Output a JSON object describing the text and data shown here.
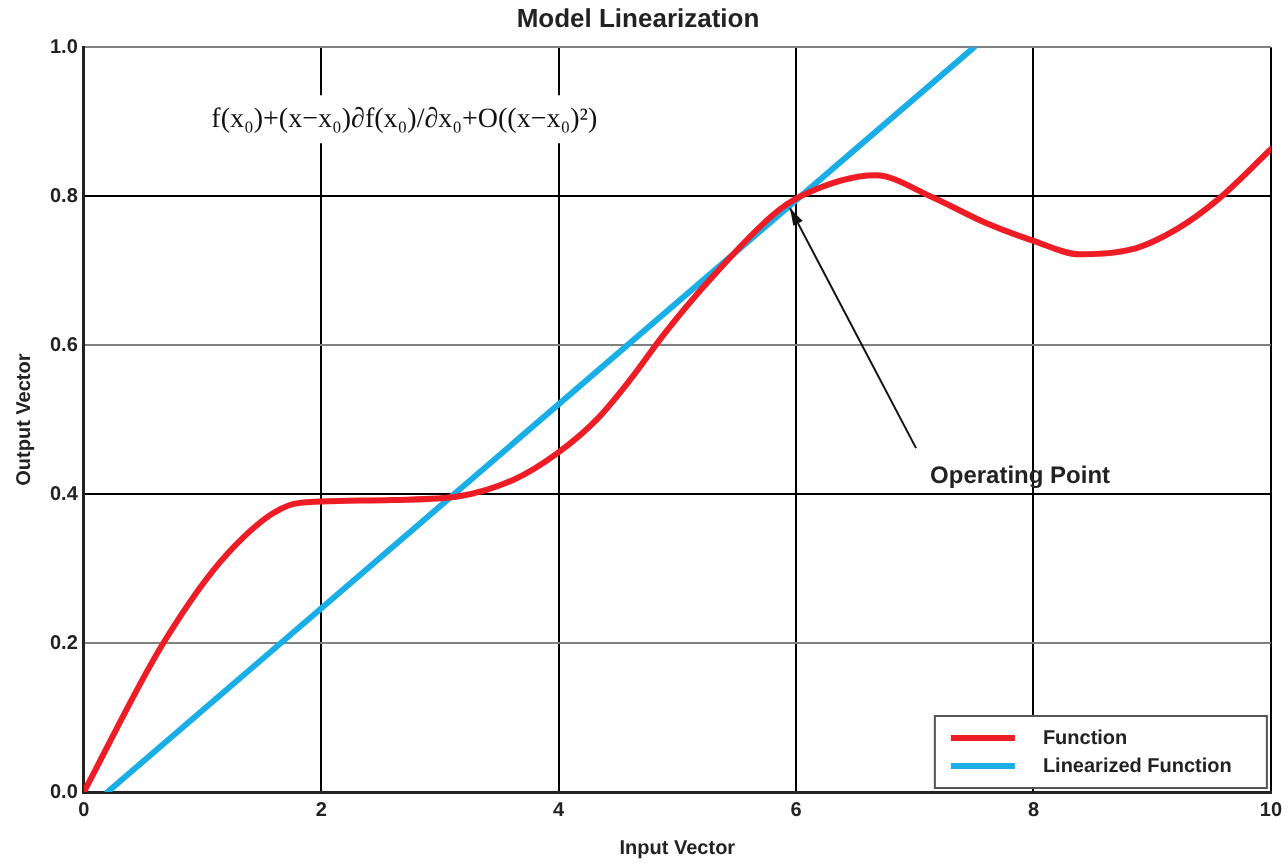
{
  "chart_data": {
    "type": "line",
    "title": "Model Linearization",
    "xlabel": "Input Vector",
    "ylabel": "Output Vector",
    "series": [
      {
        "name": "Function",
        "color": "#ee1c25",
        "x": [
          0,
          0.67,
          1.21,
          1.73,
          2.0,
          2.59,
          3.16,
          3.63,
          3.99,
          4.32,
          4.6,
          4.89,
          5.23,
          5.8,
          6.04,
          6.67,
          7.13,
          7.6,
          8.0,
          8.39,
          8.86,
          9.2,
          9.55,
          10
        ],
        "values": [
          0,
          0.2,
          0.32,
          0.385,
          0.39,
          0.392,
          0.397,
          0.42,
          0.455,
          0.5,
          0.553,
          0.615,
          0.68,
          0.774,
          0.8,
          0.828,
          0.8,
          0.764,
          0.74,
          0.722,
          0.73,
          0.755,
          0.795,
          0.863
        ]
      },
      {
        "name": "Linearized Function",
        "color": "#1aaee6",
        "x": [
          0.2,
          7.5
        ],
        "values": [
          0,
          1.0
        ]
      }
    ],
    "xlim": [
      0,
      10
    ],
    "xticks": [
      0,
      2,
      4,
      6,
      8,
      10
    ],
    "ylim": [
      0,
      1.0
    ],
    "yticks": [
      {
        "value": 0,
        "label": "0.0"
      },
      0.2,
      0.4,
      0.6,
      0.8,
      {
        "value": 1.0,
        "label": "1.0"
      }
    ],
    "annotations": [
      "f(x₀)+(x−x₀)∂f(x₀)/∂x₀+O((x−x₀)²)",
      {
        "text": "Operating Point",
        "x": 6,
        "y": 0.8
      }
    ],
    "grid": true,
    "legend": "bottom right",
    "marker": "none",
    "line_style": "solid"
  }
}
